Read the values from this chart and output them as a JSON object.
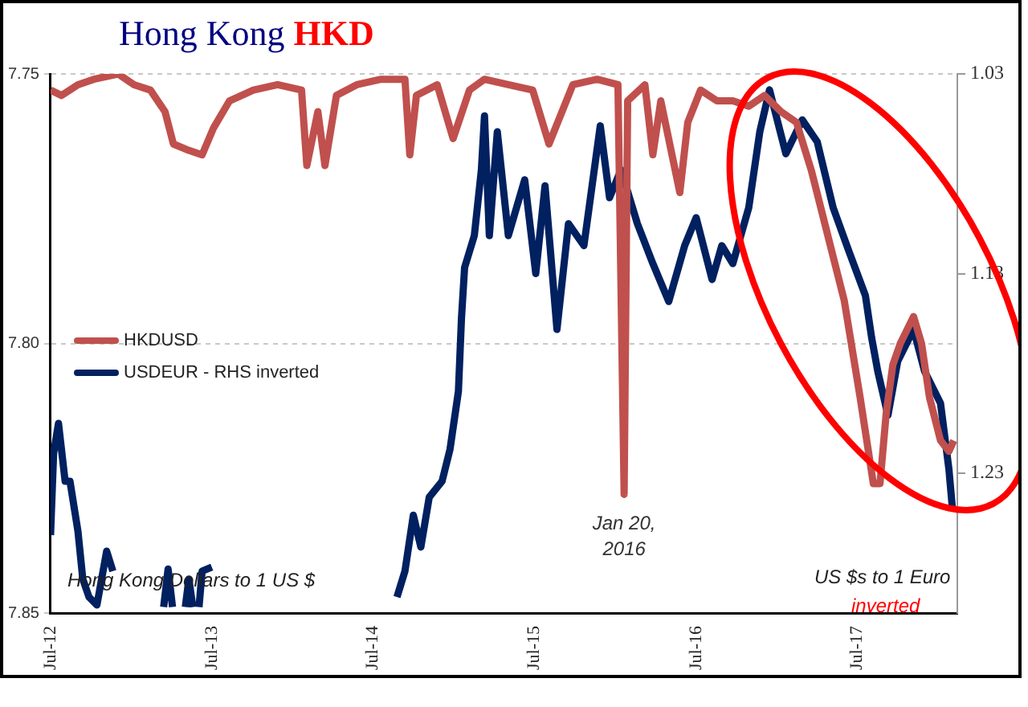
{
  "chart_data": {
    "type": "line",
    "title": "Hong Kong HKD",
    "xlim": [
      "2012-07-01",
      "2018-02-12"
    ],
    "xticks": [
      {
        "value": "2012-07-01",
        "label": "Jul-12"
      },
      {
        "value": "2013-07-01",
        "label": "Jul-13"
      },
      {
        "value": "2014-07-01",
        "label": "Jul-14"
      },
      {
        "value": "2015-07-01",
        "label": "Jul-15"
      },
      {
        "value": "2016-07-01",
        "label": "Jul-16"
      },
      {
        "value": "2017-07-01",
        "label": "Jul-17"
      }
    ],
    "ylim": [
      7.85,
      7.75
    ],
    "yticks": [
      7.75,
      {
        "value": 7.8,
        "label": "7.80"
      },
      7.85
    ],
    "y2lim": [
      1.3,
      1.03
    ],
    "y2ticks": [
      1.03,
      1.13,
      1.23
    ],
    "grid": "y",
    "legend": "left",
    "series": [
      {
        "name": "HKDUSD",
        "color": "#c0504d",
        "x": [
          "2012-07-01",
          "2012-07-26",
          "2012-09-01",
          "2012-10-07",
          "2012-12-01",
          "2013-01-06",
          "2013-02-12",
          "2013-03-17",
          "2013-04-05",
          "2013-05-04",
          "2013-06-09",
          "2013-07-05",
          "2013-08-10",
          "2013-10-03",
          "2013-11-27",
          "2014-01-20",
          "2014-02-01",
          "2014-02-26",
          "2014-03-14",
          "2014-04-09",
          "2014-05-25",
          "2014-07-19",
          "2014-09-11",
          "2014-09-22",
          "2014-10-07",
          "2014-11-23",
          "2014-12-29",
          "2015-02-04",
          "2015-03-10",
          "2015-05-03",
          "2015-06-27",
          "2015-08-03",
          "2015-09-26",
          "2015-11-20",
          "2016-01-06",
          "2016-01-20",
          "2016-01-28",
          "2016-03-07",
          "2016-03-25",
          "2016-04-12",
          "2016-05-25",
          "2016-06-12",
          "2016-07-11",
          "2016-08-17",
          "2016-09-22",
          "2016-10-28",
          "2016-12-03",
          "2017-01-09",
          "2017-02-13",
          "2017-03-19",
          "2017-04-25",
          "2017-06-01",
          "2017-07-07",
          "2017-08-06",
          "2017-08-21",
          "2017-09-04",
          "2017-09-19",
          "2017-10-06",
          "2017-11-05",
          "2017-11-23",
          "2017-12-11",
          "2018-01-05",
          "2018-01-24",
          "2018-02-04"
        ],
        "values": [
          7.753,
          7.754,
          7.752,
          7.751,
          7.75,
          7.752,
          7.753,
          7.757,
          7.763,
          7.764,
          7.765,
          7.76,
          7.755,
          7.753,
          7.752,
          7.753,
          7.767,
          7.757,
          7.767,
          7.754,
          7.752,
          7.751,
          7.751,
          7.765,
          7.754,
          7.752,
          7.762,
          7.753,
          7.751,
          7.752,
          7.753,
          7.763,
          7.752,
          7.751,
          7.752,
          7.828,
          7.755,
          7.752,
          7.765,
          7.755,
          7.772,
          7.759,
          7.753,
          7.755,
          7.755,
          7.756,
          7.754,
          7.757,
          7.759,
          7.768,
          7.78,
          7.792,
          7.81,
          7.826,
          7.826,
          7.813,
          7.804,
          7.8,
          7.795,
          7.8,
          7.81,
          7.818,
          7.82,
          7.818
        ]
      },
      {
        "name": "USDEUR - RHS inverted",
        "color": "#002060",
        "axis": "y2",
        "x": [
          "2012-07-01",
          "2012-07-08",
          "2012-07-19",
          "2012-08-03",
          "2012-08-14",
          "2012-09-01",
          "2012-09-12",
          "2012-09-26",
          "2012-10-14",
          "2012-11-05",
          "2012-11-19",
          "2012-12-18",
          "2013-03-14",
          "2013-03-24",
          "2013-04-03",
          "2013-04-12",
          "2013-05-02",
          "2013-05-10",
          "2013-05-19",
          "2013-05-28",
          "2013-06-02",
          "2013-06-09",
          "2013-07-01",
          "2013-07-15",
          "2014-08-24",
          "2014-09-11",
          "2014-09-30",
          "2014-10-17",
          "2014-11-05",
          "2014-12-04",
          "2014-12-22",
          "2015-01-10",
          "2015-01-17",
          "2015-01-24",
          "2015-02-15",
          "2015-03-03",
          "2015-03-10",
          "2015-03-21",
          "2015-04-08",
          "2015-05-03",
          "2015-06-09",
          "2015-07-04",
          "2015-07-25",
          "2015-08-21",
          "2015-09-16",
          "2015-10-21",
          "2015-11-27",
          "2015-12-18",
          "2016-01-13",
          "2016-02-19",
          "2016-03-25",
          "2016-04-30",
          "2016-06-05",
          "2016-07-01",
          "2016-08-06",
          "2016-08-28",
          "2016-09-22",
          "2016-10-28",
          "2016-11-22",
          "2016-12-14",
          "2017-01-20",
          "2017-02-26",
          "2017-04-01",
          "2017-05-07",
          "2017-06-12",
          "2017-07-19",
          "2017-08-02",
          "2017-08-16",
          "2017-09-08",
          "2017-09-30",
          "2017-11-05",
          "2017-11-30",
          "2018-01-05",
          "2018-01-24",
          "2018-02-01"
        ],
        "values": [
          1.261,
          1.22,
          1.205,
          1.234,
          1.234,
          1.259,
          1.283,
          1.292,
          1.296,
          1.269,
          1.279,
          null,
          1.297,
          1.278,
          1.297,
          null,
          1.297,
          1.283,
          1.297,
          null,
          1.297,
          1.279,
          1.277,
          null,
          1.292,
          1.279,
          1.251,
          1.267,
          1.242,
          1.234,
          1.218,
          1.189,
          1.152,
          1.127,
          1.111,
          1.078,
          1.051,
          1.111,
          1.059,
          1.111,
          1.083,
          1.13,
          1.086,
          1.158,
          1.105,
          1.116,
          1.056,
          1.092,
          1.078,
          1.105,
          1.125,
          1.144,
          1.116,
          1.102,
          1.133,
          1.116,
          1.125,
          1.097,
          1.059,
          1.038,
          1.07,
          1.053,
          1.064,
          1.097,
          1.119,
          1.141,
          1.162,
          1.179,
          1.201,
          1.174,
          1.158,
          1.179,
          1.195,
          1.228,
          1.248
        ]
      }
    ],
    "annotations": [
      "Hong Kong Dollars to 1 US $",
      "US $s to 1 Euro",
      "inverted",
      {
        "text": "Jan 20, 2016",
        "x": "2016-01-20",
        "y": 7.828
      }
    ]
  }
}
